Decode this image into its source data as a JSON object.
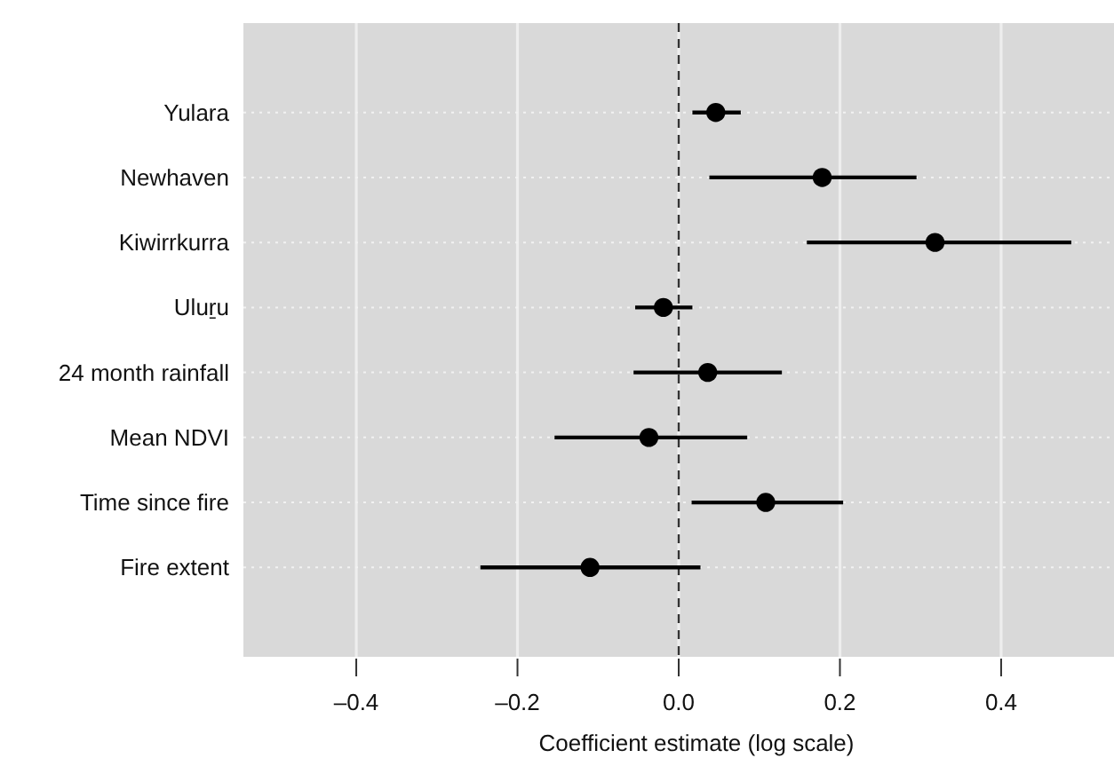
{
  "chart_data": {
    "type": "scatter",
    "orientation": "horizontal",
    "xlabel": "Coefficient estimate (log scale)",
    "categories": [
      "Yulara",
      "Newhaven",
      "Kiwirrkurra",
      "Uluṟu",
      "24 month rainfall",
      "Mean NDVI",
      "Time since fire",
      "Fire extent"
    ],
    "values": [
      0.046,
      0.178,
      0.318,
      -0.019,
      0.036,
      -0.037,
      0.108,
      -0.11
    ],
    "errors": [
      [
        0.017,
        0.077
      ],
      [
        0.038,
        0.295
      ],
      [
        0.159,
        0.487
      ],
      [
        -0.054,
        0.017
      ],
      [
        -0.056,
        0.128
      ],
      [
        -0.154,
        0.085
      ],
      [
        0.016,
        0.204
      ],
      [
        -0.246,
        0.027
      ]
    ],
    "color": "#000000",
    "marker": "circle",
    "xlim": [
      -0.54,
      0.54
    ],
    "xticks": [
      {
        "value": -0.4,
        "label": "–0.4"
      },
      {
        "value": -0.2,
        "label": "–0.2"
      },
      {
        "value": 0,
        "label": "0.0"
      },
      {
        "value": 0.2,
        "label": "0.2"
      },
      {
        "value": 0.4,
        "label": "0.4"
      }
    ],
    "grid": true,
    "ref_lines": [
      {
        "axis": "x",
        "value": 0,
        "label": null,
        "line_style": "dashed",
        "color": "#333333"
      }
    ]
  }
}
